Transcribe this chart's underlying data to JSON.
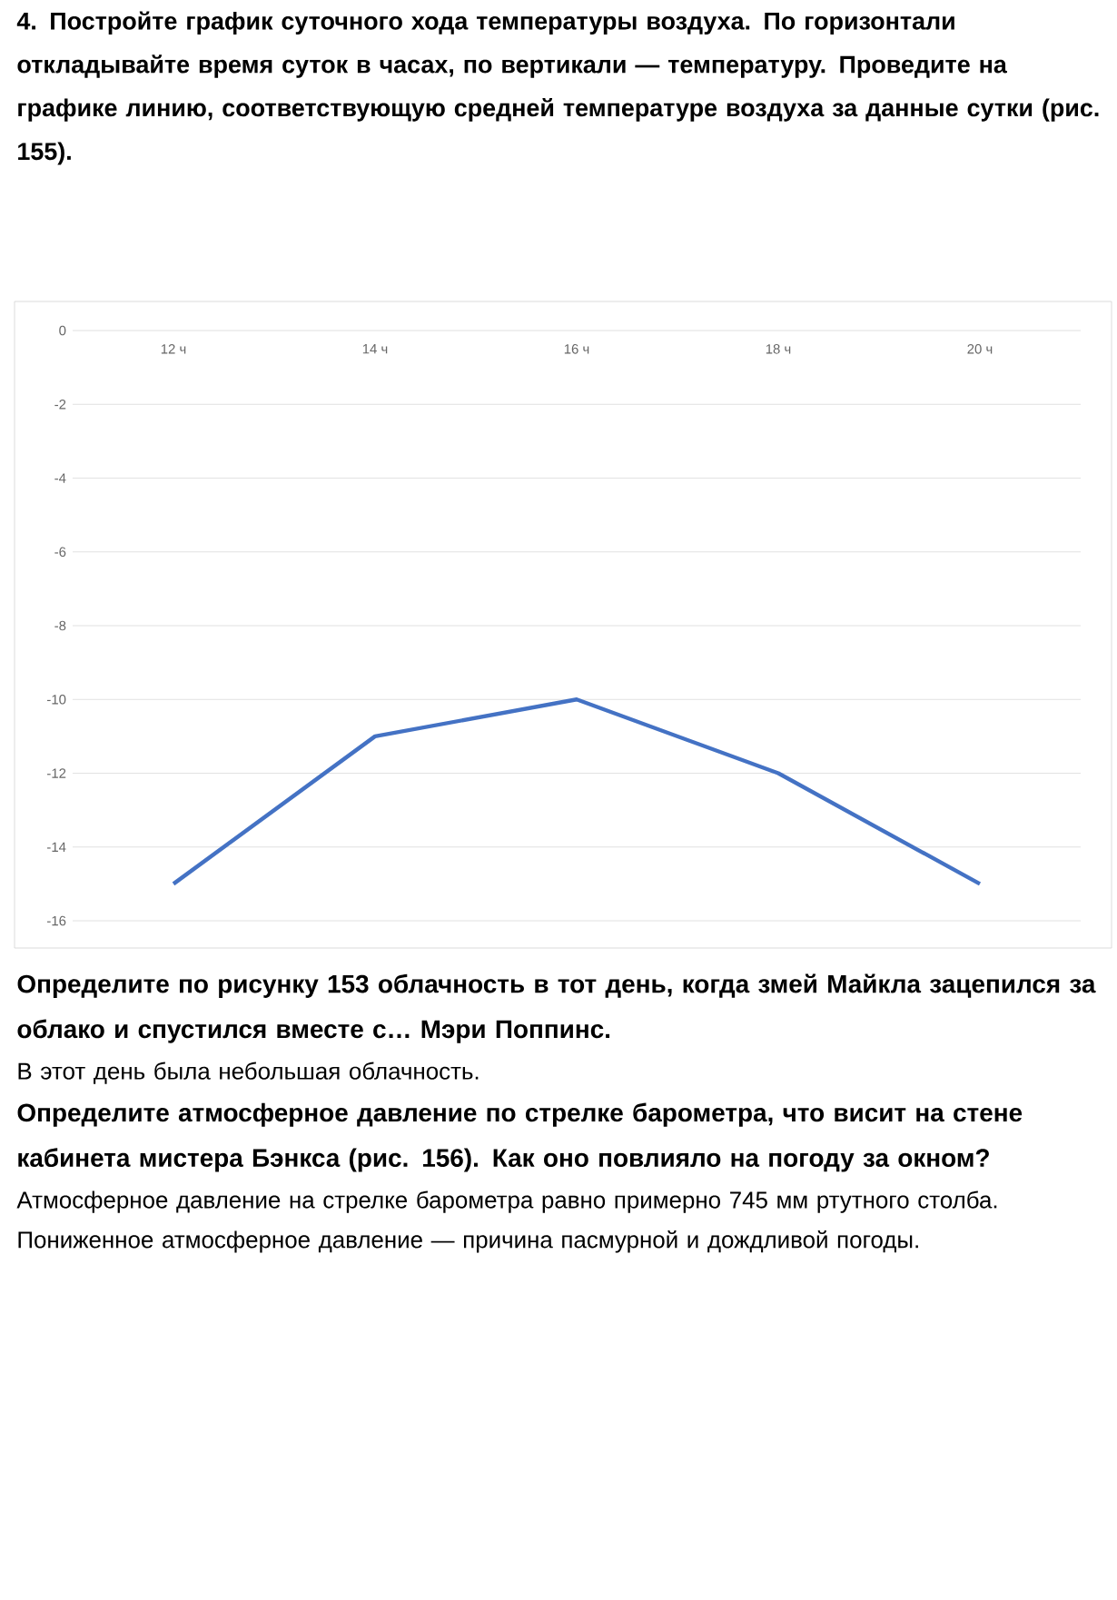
{
  "chart_data": {
    "type": "line",
    "title": "4. Постройте график суточного хода температуры воздуха. По горизонтали откладывайте время суток в часах, по вертикали — температуру. Проведите на графике линию, соответствующую средней температуре воздуха за данные сутки (рис. 155).",
    "categories": [
      "12 ч",
      "14 ч",
      "16 ч",
      "18 ч",
      "20 ч"
    ],
    "values": [
      -15,
      -11,
      -10,
      -12,
      -15
    ],
    "color": "#4472c4",
    "ylim": [
      -16,
      0
    ],
    "yticks": [
      0,
      -2,
      -4,
      -6,
      -8,
      -10,
      -12,
      -14,
      -16
    ],
    "grid": "y",
    "marker": "none",
    "annotations": [
      "Определите по рисунку 153 облачность в тот день, когда змей Майкла зацепился за облако и спустился вместе с… Мэри Поппинс.",
      "В этот день была небольшая облачность.",
      "Определите атмосферное давление по стрелке барометра, что висит на стене кабинета мистера Бэнкса (рис. 156). Как оно повлияло на погоду за окном?",
      "Атмосферное давление на стрелке барометра равно примерно 745 мм ртутного столба. Пониженное атмосферное давление — причина пасмурной и дождливой погоды."
    ]
  }
}
